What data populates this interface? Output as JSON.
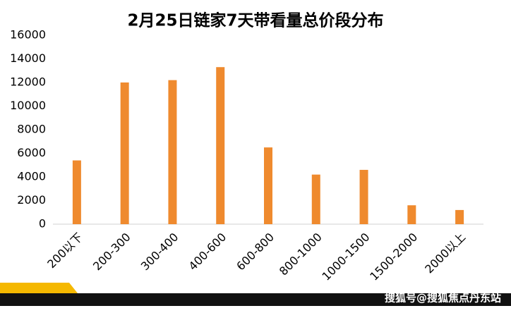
{
  "chart_data": {
    "type": "bar",
    "title": "2月25日链家7天带看量总价段分布",
    "categories": [
      "200以下",
      "200-300",
      "300-400",
      "400-600",
      "600-800",
      "800-1000",
      "1000-1500",
      "1500-2000",
      "2000以上"
    ],
    "values": [
      5400,
      12000,
      12200,
      13300,
      6500,
      4200,
      4600,
      1600,
      1200
    ],
    "color": "#ef8a2e",
    "ylim": [
      0,
      16000
    ],
    "yticks": [
      0,
      2000,
      4000,
      6000,
      8000,
      10000,
      12000,
      14000,
      16000
    ],
    "grid": false
  },
  "watermark": "搜狐号@搜狐焦点丹东站"
}
